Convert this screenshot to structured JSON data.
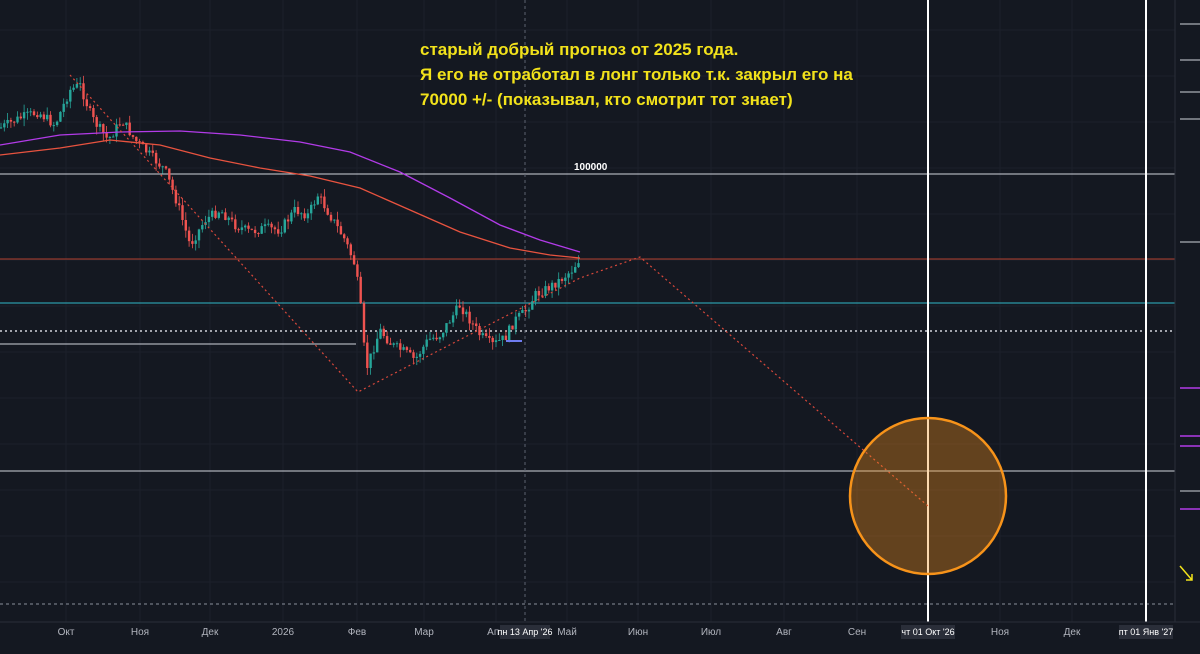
{
  "annotation": {
    "lines": [
      "старый добрый прогноз от 2025 года.",
      "Я его не отработал в лонг только т.к. закрыл его на",
      "70000 +/- (показывал, кто смотрит тот знает)"
    ],
    "color": "#f2e21b"
  },
  "level_label": "100000",
  "time_axis": {
    "labels": [
      "Окт",
      "Ноя",
      "Дек",
      "2026",
      "Фев",
      "Мар",
      "Апр",
      "Май",
      "Июн",
      "Июл",
      "Авг",
      "Сен",
      "Ноя",
      "Дек"
    ],
    "badges": [
      "пн 13 Апр '26",
      "чт 01 Окт '26",
      "пт 01 Янв '27"
    ]
  },
  "colors": {
    "background": "#141821",
    "grid": "#1f2430",
    "candle_up": "#26a69a",
    "candle_down": "#ef5350",
    "ma_red": "#e8533f",
    "ma_purple": "#b23be8",
    "projection": "#d9483b",
    "target_circle": "#f7931a",
    "level_white": "#d1d4dc",
    "level_cyan": "#2fb7c9",
    "level_red": "#b5402f"
  },
  "chart_data": {
    "type": "candlestick",
    "title": "",
    "levels": [
      100000
    ],
    "events": [
      "forecast projection ending at target circle",
      "vertical marker at чт 01 Окт '26",
      "vertical marker at пт 01 Янв '27"
    ]
  }
}
